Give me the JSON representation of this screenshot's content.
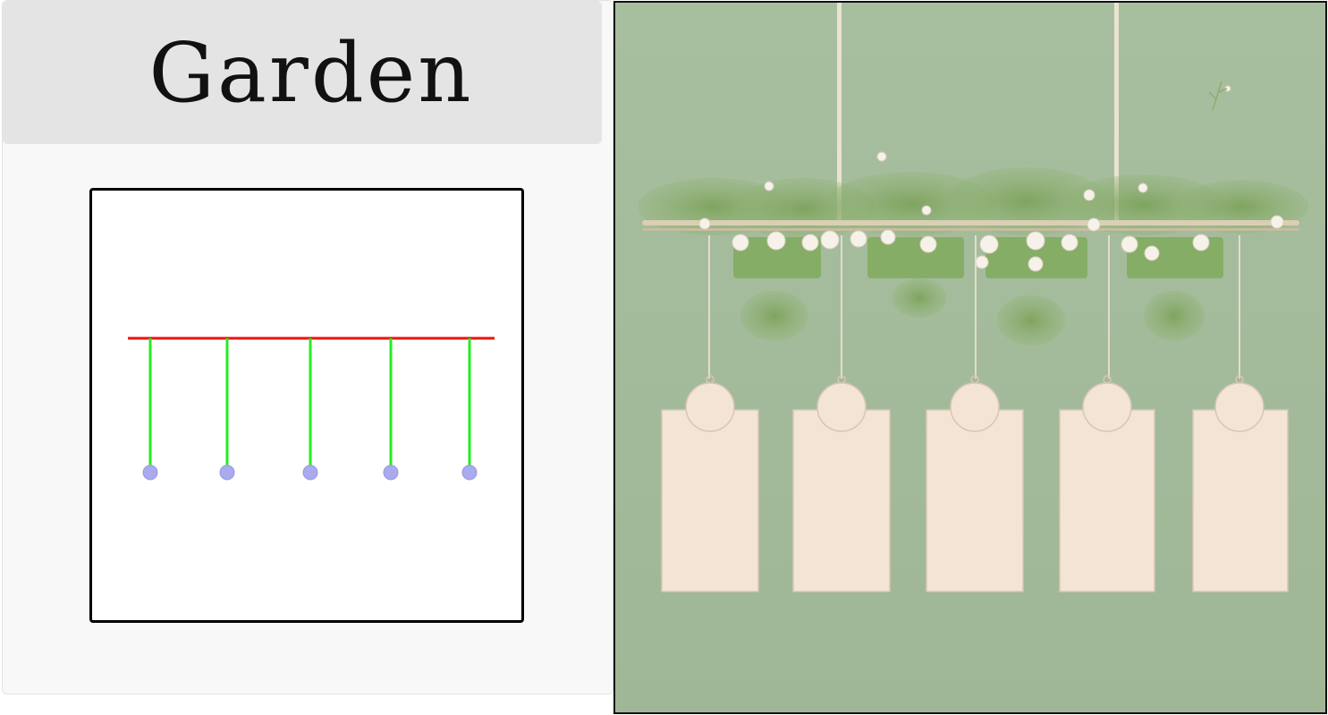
{
  "title": "Garden",
  "colors": {
    "rail": "#ee1111",
    "string": "#22ee22",
    "node": "#aaaaee",
    "wall": "#a4bb9b",
    "card": "#f3e4d6",
    "foliage": "#8aaf6d"
  },
  "diagram": {
    "hanger_count": 5
  },
  "illustration": {
    "card_count": 5,
    "description_icon": "hanging-planter-cards-illustration"
  }
}
